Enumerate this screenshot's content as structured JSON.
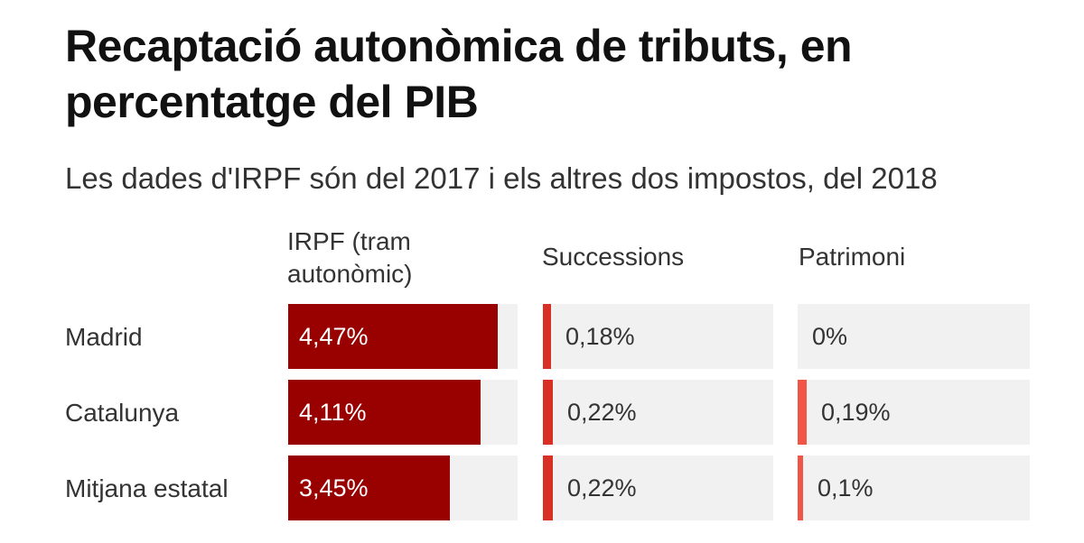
{
  "chart_data": {
    "type": "bar",
    "title": "Recaptació autonòmica de tributs, en percentatge del PIB",
    "subtitle": "Les dades d'IRPF són del 2017 i els altres dos impostos, del 2018",
    "categories": [
      "Madrid",
      "Catalunya",
      "Mitjana estatal"
    ],
    "panels": [
      {
        "name": "IRPF (tram autonòmic)",
        "max": 4.9,
        "color": "#990000",
        "values": [
          4.47,
          4.11,
          3.45
        ],
        "labels": [
          "4,47%",
          "4,11%",
          "3,45%"
        ]
      },
      {
        "name": "Successions",
        "max": 4.9,
        "color": "#d93025",
        "values": [
          0.18,
          0.22,
          0.22
        ],
        "labels": [
          "0,18%",
          "0,22%",
          "0,22%"
        ]
      },
      {
        "name": "Patrimoni",
        "max": 4.9,
        "color": "#f05545",
        "values": [
          0,
          0.19,
          0.1
        ],
        "labels": [
          "0%",
          "0,19%",
          "0,1%"
        ]
      }
    ]
  }
}
